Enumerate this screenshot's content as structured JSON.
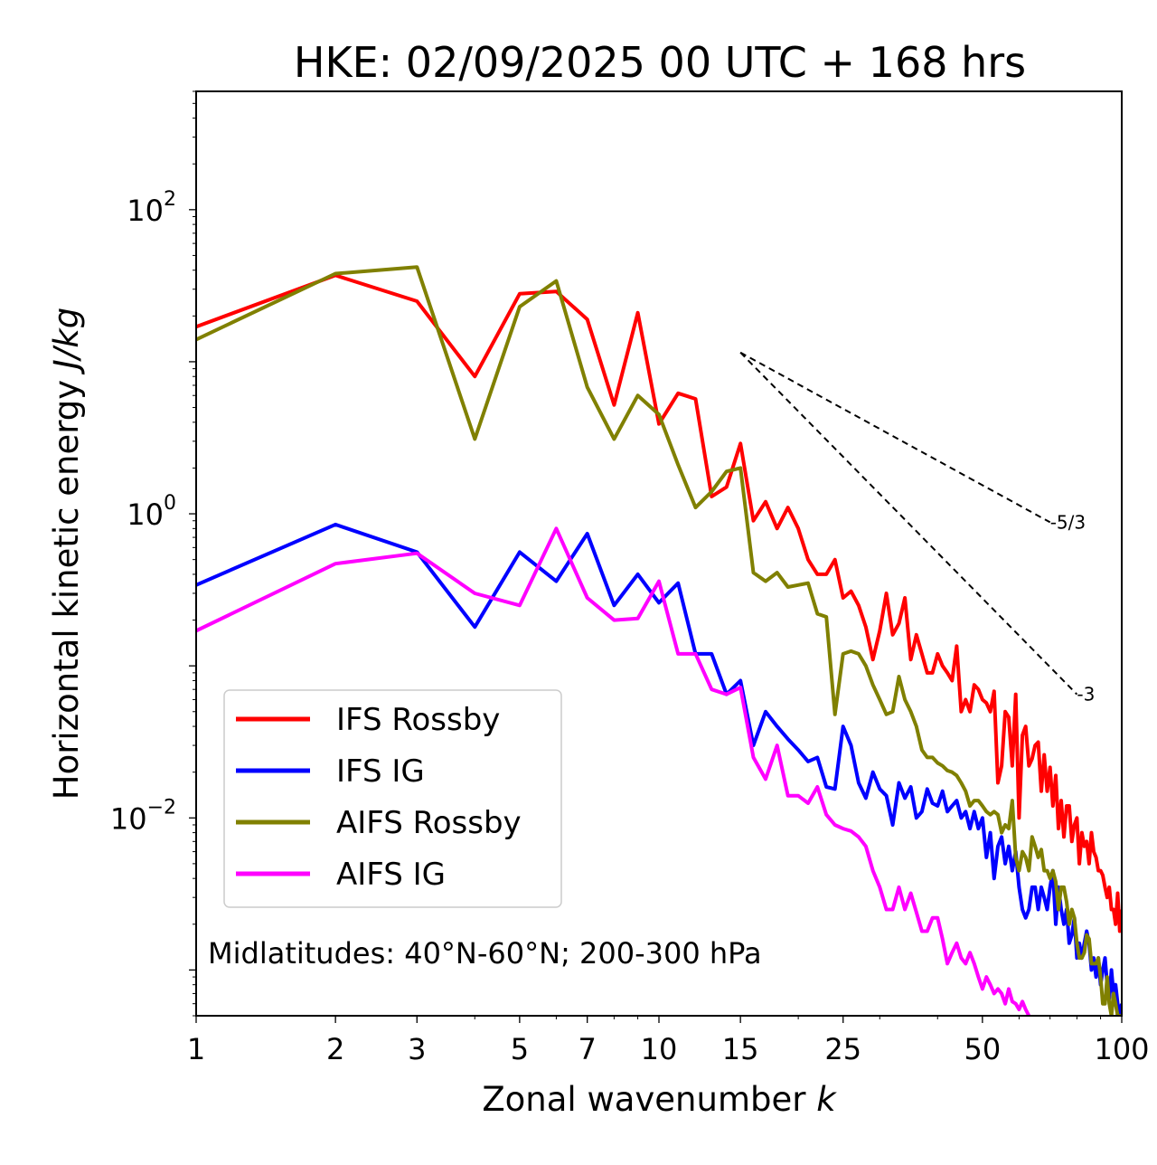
{
  "chart_data": {
    "type": "line",
    "title": "HKE: 02/09/2025 00 UTC + 168 hrs",
    "xlabel_prefix": "Zonal wavenumber ",
    "xlabel_var": "k",
    "ylabel_prefix": "Horizontal kinetic energy ",
    "ylabel_unit": "J/kg",
    "x_scale": "log",
    "y_scale": "log",
    "xlim": [
      1,
      100
    ],
    "ylim": [
      0.0005,
      600
    ],
    "x_ticks": [
      {
        "value": 1,
        "label": "1"
      },
      {
        "value": 2,
        "label": "2"
      },
      {
        "value": 3,
        "label": "3"
      },
      {
        "value": 5,
        "label": "5"
      },
      {
        "value": 7,
        "label": "7"
      },
      {
        "value": 10,
        "label": "10"
      },
      {
        "value": 15,
        "label": "15"
      },
      {
        "value": 25,
        "label": "25"
      },
      {
        "value": 50,
        "label": "50"
      },
      {
        "value": 100,
        "label": "100"
      }
    ],
    "y_ticks": [
      {
        "value": 0.01,
        "base": "10",
        "exp": "−2"
      },
      {
        "value": 1,
        "base": "10",
        "exp": "0"
      },
      {
        "value": 100,
        "base": "10",
        "exp": "2"
      }
    ],
    "annotation": "Midlatitudes: 40°N-60°N; 200-300 hPa",
    "legend_position": "lower-left",
    "reference_lines": [
      {
        "label": "-5/3",
        "x": [
          15,
          70
        ],
        "y": [
          11.5,
          0.88
        ]
      },
      {
        "label": "-3",
        "x": [
          15,
          80
        ],
        "y": [
          11.5,
          0.065
        ]
      }
    ],
    "series": [
      {
        "name": "IFS Rossby",
        "color": "#ff0000",
        "x": [
          1,
          2,
          3,
          4,
          5,
          6,
          7,
          8,
          9,
          10,
          11,
          12,
          13,
          14,
          15,
          16,
          17,
          18,
          19,
          20,
          21,
          22,
          23,
          24,
          25,
          26,
          27,
          28,
          29,
          30,
          31,
          32,
          33,
          34,
          35,
          36,
          37,
          38,
          39,
          40,
          41,
          42,
          43,
          44,
          45,
          46,
          47,
          48,
          49,
          50,
          51,
          52,
          53,
          54,
          55,
          56,
          57,
          58,
          59,
          60,
          61,
          62,
          63,
          64,
          65,
          66,
          67,
          68,
          69,
          70,
          71,
          72,
          73,
          74,
          75,
          76,
          77,
          78,
          79,
          80,
          81,
          82,
          83,
          84,
          85,
          86,
          87,
          88,
          89,
          90,
          91,
          92,
          93,
          94,
          95,
          96,
          97,
          98,
          99,
          100
        ],
        "y": [
          17,
          37,
          25,
          8,
          28,
          29,
          19,
          5.2,
          21,
          3.9,
          6.2,
          5.7,
          1.3,
          1.5,
          2.9,
          0.9,
          1.2,
          0.8,
          1.1,
          0.8,
          0.5,
          0.4,
          0.4,
          0.5,
          0.28,
          0.31,
          0.25,
          0.18,
          0.11,
          0.17,
          0.3,
          0.16,
          0.19,
          0.28,
          0.11,
          0.16,
          0.12,
          0.09,
          0.09,
          0.12,
          0.1,
          0.09,
          0.08,
          0.135,
          0.05,
          0.06,
          0.05,
          0.075,
          0.07,
          0.06,
          0.057,
          0.05,
          0.068,
          0.017,
          0.022,
          0.05,
          0.046,
          0.022,
          0.065,
          0.01,
          0.035,
          0.04,
          0.022,
          0.0245,
          0.03,
          0.0315,
          0.015,
          0.026,
          0.015,
          0.0215,
          0.012,
          0.019,
          0.0085,
          0.013,
          0.0075,
          0.012,
          0.012,
          0.007,
          0.009,
          0.01,
          0.005,
          0.008,
          0.0065,
          0.007,
          0.005,
          0.008,
          0.006,
          0.0055,
          0.0045,
          0.0045,
          0.0042,
          0.0035,
          0.003,
          0.0035,
          0.0025,
          0.0025,
          0.002,
          0.0032,
          0.0018,
          0.0025
        ]
      },
      {
        "name": "IFS IG",
        "color": "#0000ff",
        "x": [
          1,
          2,
          3,
          4,
          5,
          6,
          7,
          8,
          9,
          10,
          11,
          12,
          13,
          14,
          15,
          16,
          17,
          18,
          19,
          20,
          21,
          22,
          23,
          24,
          25,
          26,
          27,
          28,
          29,
          30,
          31,
          32,
          33,
          34,
          35,
          36,
          37,
          38,
          39,
          40,
          41,
          42,
          43,
          44,
          45,
          46,
          47,
          48,
          49,
          50,
          51,
          52,
          53,
          54,
          55,
          56,
          57,
          58,
          59,
          60,
          61,
          62,
          63,
          64,
          65,
          66,
          67,
          68,
          69,
          70,
          71,
          72,
          73,
          74,
          75,
          76,
          77,
          78,
          79,
          80,
          81,
          82,
          83,
          84,
          85,
          86,
          87,
          88,
          89,
          90,
          91,
          92,
          93,
          94,
          95,
          96,
          97,
          98,
          99,
          100
        ],
        "y": [
          0.34,
          0.85,
          0.56,
          0.18,
          0.56,
          0.36,
          0.74,
          0.25,
          0.4,
          0.26,
          0.35,
          0.12,
          0.12,
          0.065,
          0.08,
          0.03,
          0.05,
          0.04,
          0.033,
          0.028,
          0.0235,
          0.025,
          0.016,
          0.0155,
          0.04,
          0.03,
          0.017,
          0.0135,
          0.02,
          0.0155,
          0.014,
          0.009,
          0.017,
          0.0135,
          0.016,
          0.01,
          0.011,
          0.0155,
          0.0125,
          0.012,
          0.015,
          0.011,
          0.012,
          0.013,
          0.01,
          0.011,
          0.0085,
          0.011,
          0.0085,
          0.01,
          0.0055,
          0.008,
          0.004,
          0.0065,
          0.0075,
          0.005,
          0.0065,
          0.0045,
          0.006,
          0.0035,
          0.0025,
          0.0022,
          0.0025,
          0.0035,
          0.0035,
          0.0025,
          0.0035,
          0.003,
          0.0025,
          0.0035,
          0.0045,
          0.002,
          0.0035,
          0.0025,
          0.002,
          0.0025,
          0.0015,
          0.0017,
          0.0022,
          0.0012,
          0.0015,
          0.0012,
          0.0015,
          0.0018,
          0.0015,
          0.001,
          0.0012,
          0.0009,
          0.0012,
          0.0008,
          0.001,
          0.0012,
          0.0008,
          0.00065,
          0.001,
          0.0007,
          0.0008,
          0.0006,
          0.0005,
          0.0006
        ]
      },
      {
        "name": "AIFS Rossby",
        "color": "#808000",
        "x": [
          1,
          2,
          3,
          4,
          5,
          6,
          7,
          8,
          9,
          10,
          11,
          12,
          13,
          14,
          15,
          16,
          17,
          18,
          19,
          20,
          21,
          22,
          23,
          24,
          25,
          26,
          27,
          28,
          29,
          30,
          31,
          32,
          33,
          34,
          35,
          36,
          37,
          38,
          39,
          40,
          41,
          42,
          43,
          44,
          45,
          46,
          47,
          48,
          49,
          50,
          51,
          52,
          53,
          54,
          55,
          56,
          57,
          58,
          59,
          60,
          61,
          62,
          63,
          64,
          65,
          66,
          67,
          68,
          69,
          70,
          71,
          72,
          73,
          74,
          75,
          76,
          77,
          78,
          79,
          80,
          81,
          82,
          83,
          84,
          85,
          86,
          87,
          88,
          89,
          90,
          91,
          92,
          93,
          94,
          95,
          96,
          97,
          98,
          99,
          100
        ],
        "y": [
          14,
          38,
          42,
          3.1,
          23,
          34,
          6.8,
          3.1,
          6,
          4.5,
          2.1,
          1.1,
          1.4,
          1.9,
          2.0,
          0.41,
          0.36,
          0.41,
          0.33,
          0.34,
          0.35,
          0.22,
          0.21,
          0.048,
          0.12,
          0.125,
          0.12,
          0.1,
          0.075,
          0.06,
          0.048,
          0.05,
          0.085,
          0.06,
          0.05,
          0.04,
          0.028,
          0.025,
          0.025,
          0.023,
          0.022,
          0.0205,
          0.02,
          0.019,
          0.017,
          0.015,
          0.012,
          0.013,
          0.013,
          0.012,
          0.011,
          0.0105,
          0.011,
          0.0105,
          0.008,
          0.009,
          0.0085,
          0.013,
          0.0055,
          0.0045,
          0.006,
          0.0055,
          0.0045,
          0.0075,
          0.0065,
          0.0055,
          0.0062,
          0.0045,
          0.0045,
          0.004,
          0.0045,
          0.0038,
          0.0025,
          0.0035,
          0.0035,
          0.0028,
          0.002,
          0.0025,
          0.0022,
          0.0015,
          0.0012,
          0.0012,
          0.0013,
          0.0017,
          0.0016,
          0.0011,
          0.0011,
          0.0011,
          0.0012,
          0.0009,
          0.0006,
          0.0006,
          0.0009,
          0.0006,
          0.0005,
          0.0007,
          0.0006,
          0.0005,
          0.0005,
          0.0004
        ]
      },
      {
        "name": "AIFS IG",
        "color": "#ff00ff",
        "x": [
          1,
          2,
          3,
          4,
          5,
          6,
          7,
          8,
          9,
          10,
          11,
          12,
          13,
          14,
          15,
          16,
          17,
          18,
          19,
          20,
          21,
          22,
          23,
          24,
          25,
          26,
          27,
          28,
          29,
          30,
          31,
          32,
          33,
          34,
          35,
          36,
          37,
          38,
          39,
          40,
          41,
          42,
          43,
          44,
          45,
          46,
          47,
          48,
          49,
          50,
          51,
          52,
          53,
          54,
          55,
          56,
          57,
          58,
          59,
          60,
          61,
          62,
          63,
          64
        ],
        "y": [
          0.17,
          0.47,
          0.55,
          0.3,
          0.25,
          0.8,
          0.28,
          0.2,
          0.205,
          0.36,
          0.12,
          0.12,
          0.07,
          0.065,
          0.072,
          0.025,
          0.018,
          0.03,
          0.014,
          0.014,
          0.0125,
          0.016,
          0.0105,
          0.009,
          0.0085,
          0.0082,
          0.0075,
          0.0065,
          0.0045,
          0.0035,
          0.0025,
          0.0025,
          0.0035,
          0.0025,
          0.0032,
          0.0024,
          0.0018,
          0.0018,
          0.0022,
          0.0022,
          0.0016,
          0.0011,
          0.0013,
          0.0015,
          0.0012,
          0.0011,
          0.0013,
          0.0011,
          0.0009,
          0.00075,
          0.0009,
          0.0008,
          0.0007,
          0.00075,
          0.0007,
          0.0006,
          0.00075,
          0.00062,
          0.0006,
          0.00055,
          0.00062,
          0.00055,
          0.0005,
          0.00045
        ]
      }
    ]
  }
}
